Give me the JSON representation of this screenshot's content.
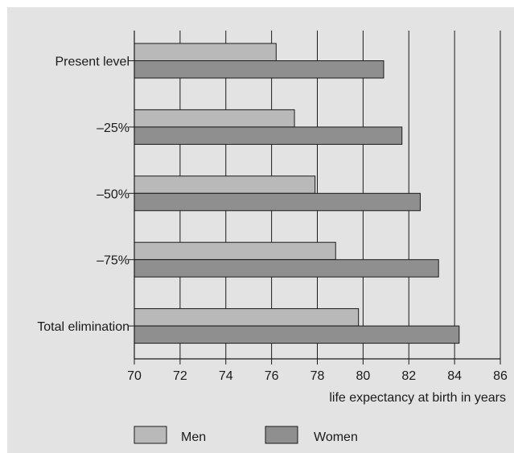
{
  "chart_data": {
    "type": "bar",
    "orientation": "horizontal",
    "categories": [
      "Present level",
      "–25%",
      "–50%",
      "–75%",
      "Total elimination"
    ],
    "series": [
      {
        "name": "Men",
        "values": [
          76.2,
          77.0,
          77.9,
          78.8,
          79.8
        ]
      },
      {
        "name": "Women",
        "values": [
          80.9,
          81.7,
          82.5,
          83.3,
          84.2
        ]
      }
    ],
    "xlabel": "life expectancy at birth in years",
    "ylabel": "",
    "xlim": [
      70,
      86
    ],
    "xticks": [
      70,
      72,
      74,
      76,
      78,
      80,
      82,
      84,
      86
    ],
    "grid": true,
    "legend_position": "bottom",
    "colors": {
      "panel": "#e3e3e3",
      "men": "#b9b9b9",
      "women": "#8f8f8f",
      "grid": "#1a1a1a",
      "text": "#1a1a1a"
    }
  }
}
